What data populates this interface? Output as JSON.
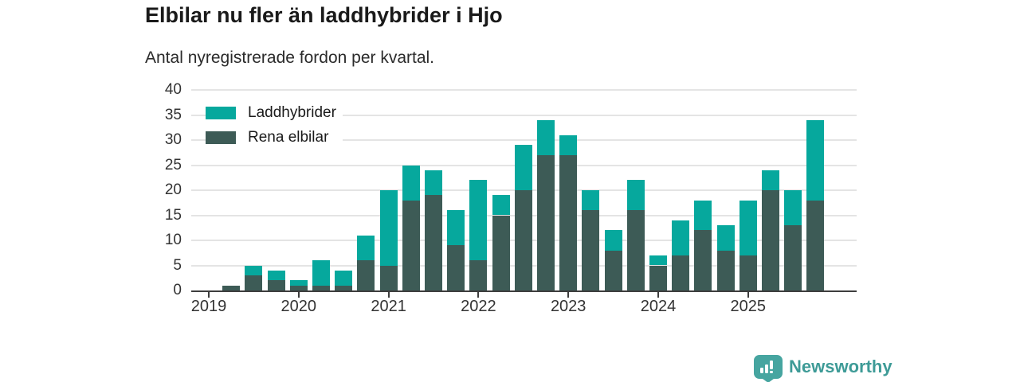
{
  "header": {
    "title": "Elbilar nu fler än laddhybrider i Hjo",
    "subtitle": "Antal nyregistrerade fordon per kvartal."
  },
  "branding": {
    "logo_text": "Newsworthy",
    "logo_icon": "newsworthy-chart-bubble-icon",
    "logo_text_color": "#3e9b97",
    "logo_mark_color": "#46a5a0"
  },
  "colors": {
    "laddhybrider": "#06a89d",
    "rena_elbilar": "#3d5b56",
    "gridline": "#e4e4e4",
    "axis": "#3d3d3d",
    "axis_text": "#333333"
  },
  "chart_data": {
    "type": "bar",
    "stacked": true,
    "title": "Elbilar nu fler än laddhybrider i Hjo",
    "subtitle": "Antal nyregistrerade fordon per kvartal.",
    "ylim": [
      0,
      40
    ],
    "yticks": [
      0,
      5,
      10,
      15,
      20,
      25,
      30,
      35,
      40
    ],
    "grid": true,
    "legend_position": "top-left",
    "xtick_labels": [
      "2019",
      "2020",
      "2021",
      "2022",
      "2023",
      "2024",
      "2025"
    ],
    "categories": [
      "2019 Q1",
      "2019 Q2",
      "2019 Q3",
      "2019 Q4",
      "2020 Q1",
      "2020 Q2",
      "2020 Q3",
      "2020 Q4",
      "2021 Q1",
      "2021 Q2",
      "2021 Q3",
      "2021 Q4",
      "2022 Q1",
      "2022 Q2",
      "2022 Q3",
      "2022 Q4",
      "2023 Q1",
      "2023 Q2",
      "2023 Q3",
      "2023 Q4",
      "2024 Q1",
      "2024 Q2",
      "2024 Q3",
      "2024 Q4",
      "2025 Q1",
      "2025 Q2",
      "2025 Q3",
      "2025 Q4"
    ],
    "series": [
      {
        "name": "Laddhybrider",
        "color": "#06a89d",
        "stack_position": "top",
        "values": [
          0,
          0,
          2,
          2,
          1,
          5,
          3,
          5,
          15,
          7,
          5,
          7,
          16,
          4,
          9,
          7,
          4,
          4,
          4,
          6,
          2,
          7,
          6,
          5,
          11,
          4,
          7,
          16
        ]
      },
      {
        "name": "Rena elbilar",
        "color": "#3d5b56",
        "stack_position": "bottom",
        "values": [
          0,
          1,
          3,
          2,
          1,
          1,
          1,
          6,
          5,
          18,
          19,
          9,
          6,
          15,
          20,
          27,
          27,
          16,
          8,
          16,
          5,
          7,
          12,
          8,
          7,
          20,
          13,
          18
        ]
      }
    ],
    "totals": [
      0,
      1,
      5,
      4,
      2,
      6,
      4,
      11,
      20,
      25,
      24,
      16,
      22,
      19,
      29,
      34,
      31,
      20,
      12,
      22,
      7,
      14,
      18,
      13,
      18,
      24,
      20,
      34
    ]
  }
}
